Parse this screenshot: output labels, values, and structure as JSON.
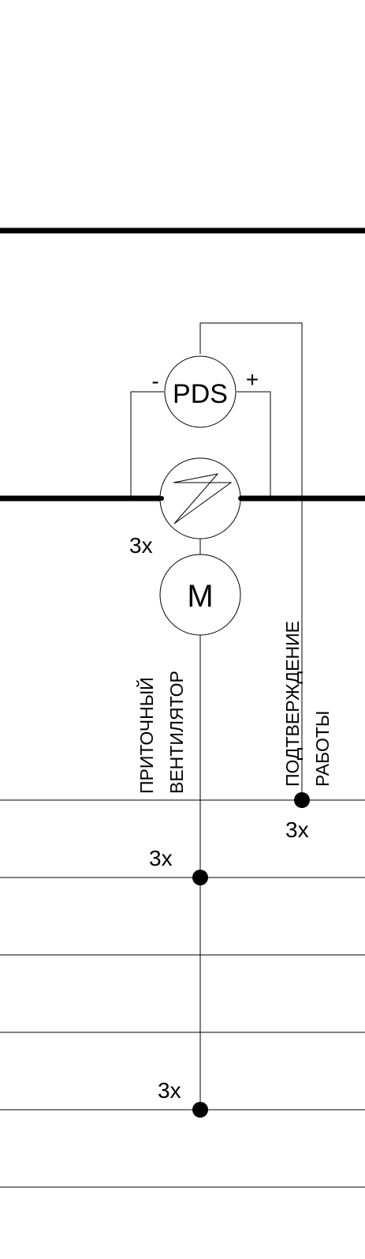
{
  "diagram": {
    "pds_label": "PDS",
    "pds_minus": "-",
    "pds_plus": "+",
    "motor_label": "M",
    "fan_label_line1": "ПРИТОЧНЫЙ",
    "fan_label_line2": "ВЕНТИЛЯТОР",
    "confirm_label_line1": "ПОДТВЕРЖДЕНИЕ",
    "confirm_label_line2": "РАБОТЫ",
    "qty_damper": "3x",
    "qty_confirm": "3x",
    "qty_bus2": "3x",
    "qty_bus5": "3x"
  },
  "colors": {
    "line": "#000000",
    "background": "#ffffff"
  }
}
